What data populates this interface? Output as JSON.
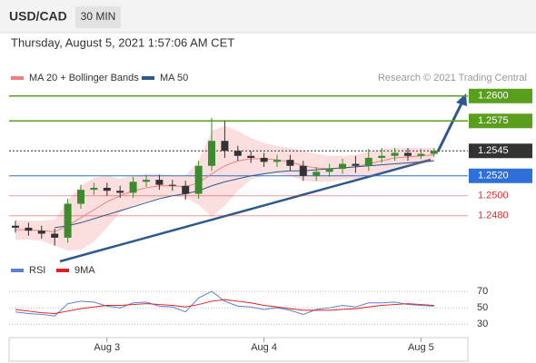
{
  "header": {
    "symbol": "USD/CAD",
    "timeframe": "30 MIN",
    "timestamp": "Thursday, August 5, 2021 1:57:06 AM CET",
    "credit": "Research © 2021 Trading Central"
  },
  "chart_data": [
    {
      "type": "candlestick",
      "ylim": [
        1.2437,
        1.2628
      ],
      "up_color": "#3d8b2f",
      "down_color": "#333333",
      "open": [
        1.247,
        1.2468,
        1.2465,
        1.2462,
        1.2458,
        1.2492,
        1.2506,
        1.2508,
        1.2505,
        1.2503,
        1.2514,
        1.2516,
        1.2511,
        1.251,
        1.2502,
        1.253,
        1.2555,
        1.2545,
        1.254,
        1.2538,
        1.2534,
        1.2536,
        1.253,
        1.252,
        1.2524,
        1.2527,
        1.2532,
        1.253,
        1.2538,
        1.254,
        1.2543,
        1.254,
        1.2542
      ],
      "high": [
        1.2475,
        1.2473,
        1.247,
        1.2467,
        1.2497,
        1.2511,
        1.2513,
        1.2513,
        1.251,
        1.2519,
        1.2521,
        1.2521,
        1.2516,
        1.2515,
        1.2535,
        1.2578,
        1.2575,
        1.255,
        1.2545,
        1.2543,
        1.2541,
        1.2541,
        1.2535,
        1.2529,
        1.2532,
        1.2537,
        1.254,
        1.2547,
        1.2548,
        1.2548,
        1.2548,
        1.2547,
        1.2548
      ],
      "low": [
        1.2463,
        1.246,
        1.2457,
        1.245,
        1.2453,
        1.2487,
        1.2501,
        1.25,
        1.2498,
        1.2498,
        1.2509,
        1.2506,
        1.2505,
        1.2496,
        1.2497,
        1.2525,
        1.2538,
        1.2535,
        1.2533,
        1.2529,
        1.2529,
        1.2525,
        1.2515,
        1.2515,
        1.2519,
        1.2522,
        1.2523,
        1.2525,
        1.2533,
        1.2535,
        1.2535,
        1.2537,
        1.2539
      ],
      "close": [
        1.2468,
        1.2465,
        1.2462,
        1.2458,
        1.2492,
        1.2506,
        1.2508,
        1.2505,
        1.2503,
        1.2514,
        1.2516,
        1.2511,
        1.251,
        1.2502,
        1.253,
        1.2555,
        1.2545,
        1.254,
        1.2538,
        1.2534,
        1.2536,
        1.253,
        1.252,
        1.2524,
        1.2527,
        1.2532,
        1.253,
        1.2538,
        1.254,
        1.2543,
        1.254,
        1.2542,
        1.2545
      ],
      "series": [
        {
          "name": "MA 20 + Bollinger Bands",
          "color": "#f08080",
          "values": [
            1.2466,
            1.2466,
            1.2465,
            1.2464,
            1.247,
            1.2478,
            1.2486,
            1.2494,
            1.25,
            1.2505,
            1.2508,
            1.251,
            1.251,
            1.2509,
            1.2513,
            1.2522,
            1.253,
            1.2535,
            1.2537,
            1.2537,
            1.2536,
            1.2534,
            1.253,
            1.2528,
            1.2527,
            1.2528,
            1.2529,
            1.2532,
            1.2535,
            1.2538,
            1.2539,
            1.254,
            1.2541
          ],
          "upper": [
            1.2476,
            1.2475,
            1.2475,
            1.2476,
            1.2495,
            1.251,
            1.2518,
            1.252,
            1.2517,
            1.252,
            1.2522,
            1.2522,
            1.252,
            1.252,
            1.2535,
            1.2565,
            1.257,
            1.2565,
            1.2558,
            1.2553,
            1.255,
            1.2548,
            1.2545,
            1.2542,
            1.254,
            1.254,
            1.2541,
            1.2544,
            1.2547,
            1.2548,
            1.2548,
            1.2548,
            1.2548
          ],
          "lower": [
            1.2456,
            1.2456,
            1.2455,
            1.245,
            1.2445,
            1.2446,
            1.2454,
            1.2468,
            1.2483,
            1.249,
            1.2494,
            1.2498,
            1.25,
            1.2498,
            1.2491,
            1.2479,
            1.249,
            1.2505,
            1.2516,
            1.2521,
            1.2522,
            1.252,
            1.2515,
            1.2514,
            1.2514,
            1.2516,
            1.2517,
            1.252,
            1.2523,
            1.2528,
            1.253,
            1.2532,
            1.2534
          ]
        },
        {
          "name": "MA 50",
          "color": "#2c5a8c",
          "values": [
            null,
            null,
            null,
            1.2468,
            1.247,
            1.2473,
            1.2477,
            1.2481,
            1.2485,
            1.2489,
            1.2493,
            1.2497,
            1.25,
            1.2502,
            1.2505,
            1.251,
            1.2514,
            1.2517,
            1.252,
            1.2522,
            1.2524,
            1.2525,
            1.2525,
            1.2526,
            1.2527,
            1.2528,
            1.2529,
            1.253,
            1.2531,
            1.2532,
            1.2533,
            1.2534,
            1.2535
          ]
        }
      ],
      "levels": [
        {
          "value": 1.26,
          "label": "1.2600"
        },
        {
          "value": 1.2575,
          "label": "1.2575"
        },
        {
          "value": 1.2545,
          "label": "1.2545"
        },
        {
          "value": 1.252,
          "label": "1.2520"
        },
        {
          "value": 1.25,
          "label": "1.2500"
        },
        {
          "value": 1.248,
          "label": "1.2480"
        }
      ],
      "level_colors": [
        "#5a9e1e",
        "#5a9e1e",
        "#333333",
        "#2e6fd8",
        "#e03030",
        "#e03030"
      ]
    },
    {
      "type": "line",
      "ylim": [
        16,
        80
      ],
      "yticks": [
        30,
        50,
        70
      ],
      "categories": [
        null,
        null,
        null,
        null,
        null,
        null,
        null,
        "Aug 3",
        null,
        null,
        null,
        null,
        null,
        null,
        null,
        null,
        null,
        null,
        null,
        "Aug 4",
        null,
        null,
        null,
        null,
        null,
        null,
        null,
        null,
        null,
        null,
        null,
        "Aug 5",
        null
      ],
      "series": [
        {
          "name": "RSI",
          "color": "#5b7fd6",
          "values": [
            45,
            43,
            42,
            40,
            55,
            58,
            57,
            52,
            50,
            56,
            57,
            52,
            51,
            45,
            62,
            70,
            58,
            52,
            51,
            48,
            50,
            47,
            42,
            48,
            50,
            53,
            51,
            56,
            56,
            57,
            54,
            53,
            52
          ]
        },
        {
          "name": "9MA",
          "color": "#e02020",
          "values": [
            48,
            46,
            44,
            43,
            46,
            49,
            51,
            53,
            53,
            54,
            55,
            54,
            53,
            51,
            54,
            58,
            60,
            58,
            56,
            53,
            51,
            49,
            47,
            47,
            47,
            48,
            49,
            51,
            53,
            54,
            55,
            54,
            53
          ]
        }
      ]
    }
  ]
}
